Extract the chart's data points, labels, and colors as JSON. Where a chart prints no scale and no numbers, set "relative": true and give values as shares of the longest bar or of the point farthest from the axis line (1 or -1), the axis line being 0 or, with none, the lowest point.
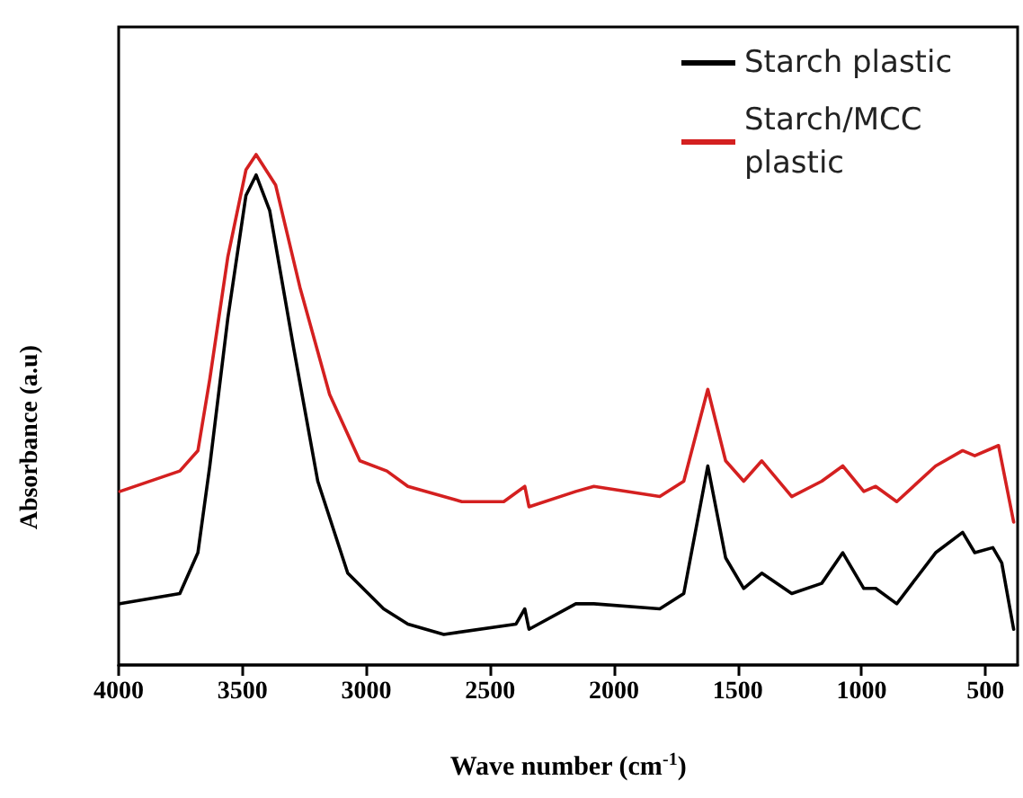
{
  "chart_data": {
    "type": "line",
    "relative": true,
    "xlabel": "Wave number (cm$^{-1}$)",
    "ylabel": "Absorbance (a.u)",
    "xlim": [
      4000,
      370
    ],
    "xticks": [
      4000,
      3500,
      3000,
      2500,
      2000,
      1500,
      1000,
      500
    ],
    "legend": "top right",
    "grid": false,
    "marker": "none",
    "line_style": "solid",
    "series": [
      {
        "name": "Starch plastic",
        "color": "#000000",
        "x": [
          3995,
          3753,
          3680,
          3632,
          3559,
          3486,
          3445,
          3390,
          3293,
          3196,
          3075,
          2930,
          2832,
          2687,
          2396,
          2360,
          2343,
          2154,
          2081,
          1815,
          1718,
          1621,
          1549,
          1476,
          1403,
          1282,
          1161,
          1076,
          991,
          943,
          858,
          701,
          592,
          543,
          470,
          434,
          386
        ],
        "values": [
          0.12,
          0.14,
          0.22,
          0.39,
          0.68,
          0.92,
          0.96,
          0.89,
          0.62,
          0.36,
          0.18,
          0.11,
          0.08,
          0.06,
          0.08,
          0.11,
          0.07,
          0.12,
          0.12,
          0.11,
          0.14,
          0.39,
          0.21,
          0.15,
          0.18,
          0.14,
          0.16,
          0.22,
          0.15,
          0.15,
          0.12,
          0.22,
          0.26,
          0.22,
          0.23,
          0.2,
          0.07
        ]
      },
      {
        "name": "Starch/MCC plastic",
        "color": "#d42020",
        "x": [
          3995,
          3753,
          3680,
          3632,
          3559,
          3486,
          3445,
          3366,
          3268,
          3148,
          3026,
          2917,
          2832,
          2614,
          2445,
          2360,
          2343,
          2154,
          2081,
          1815,
          1718,
          1621,
          1549,
          1476,
          1403,
          1282,
          1161,
          1076,
          991,
          943,
          858,
          701,
          592,
          543,
          447,
          386
        ],
        "values": [
          0.34,
          0.38,
          0.42,
          0.56,
          0.8,
          0.97,
          1,
          0.94,
          0.74,
          0.53,
          0.4,
          0.38,
          0.35,
          0.32,
          0.32,
          0.35,
          0.31,
          0.34,
          0.35,
          0.33,
          0.36,
          0.54,
          0.4,
          0.36,
          0.4,
          0.33,
          0.36,
          0.39,
          0.34,
          0.35,
          0.32,
          0.39,
          0.42,
          0.41,
          0.43,
          0.28
        ]
      }
    ]
  }
}
